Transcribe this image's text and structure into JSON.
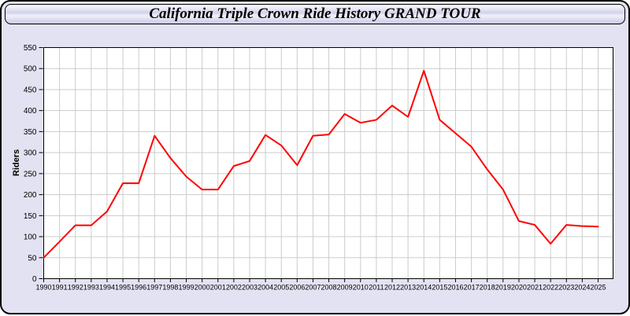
{
  "header": {
    "title": "California Triple Crown Ride History GRAND TOUR"
  },
  "colors": {
    "line": "#ff0000",
    "panel_background": "#e2e2f2",
    "plot_background": "#ffffff",
    "gridline": "#cccccc",
    "axis": "#000000",
    "page_background": "#ffffff"
  },
  "chart_data": {
    "type": "line",
    "title": "California Triple Crown Ride History GRAND TOUR",
    "xlabel": "",
    "ylabel": "Riders",
    "grid": true,
    "legend": false,
    "ylim": [
      0,
      550
    ],
    "ytick_step": 50,
    "x": [
      1990,
      1991,
      1992,
      1993,
      1994,
      1995,
      1996,
      1997,
      1998,
      1999,
      2000,
      2001,
      2002,
      2003,
      2004,
      2005,
      2006,
      2007,
      2008,
      2009,
      2010,
      2011,
      2012,
      2013,
      2014,
      2015,
      2016,
      2017,
      2018,
      2019,
      2020,
      2021,
      2022,
      2023,
      2024,
      2025
    ],
    "series": [
      {
        "name": "Riders",
        "color": "#ff0000",
        "values": [
          50,
          88,
          127,
          127,
          160,
          227,
          227,
          340,
          287,
          243,
          212,
          212,
          268,
          280,
          342,
          317,
          270,
          340,
          343,
          392,
          371,
          378,
          412,
          385,
          495,
          378,
          346,
          314,
          260,
          212,
          137,
          128,
          83,
          128,
          125,
          124
        ]
      }
    ]
  }
}
